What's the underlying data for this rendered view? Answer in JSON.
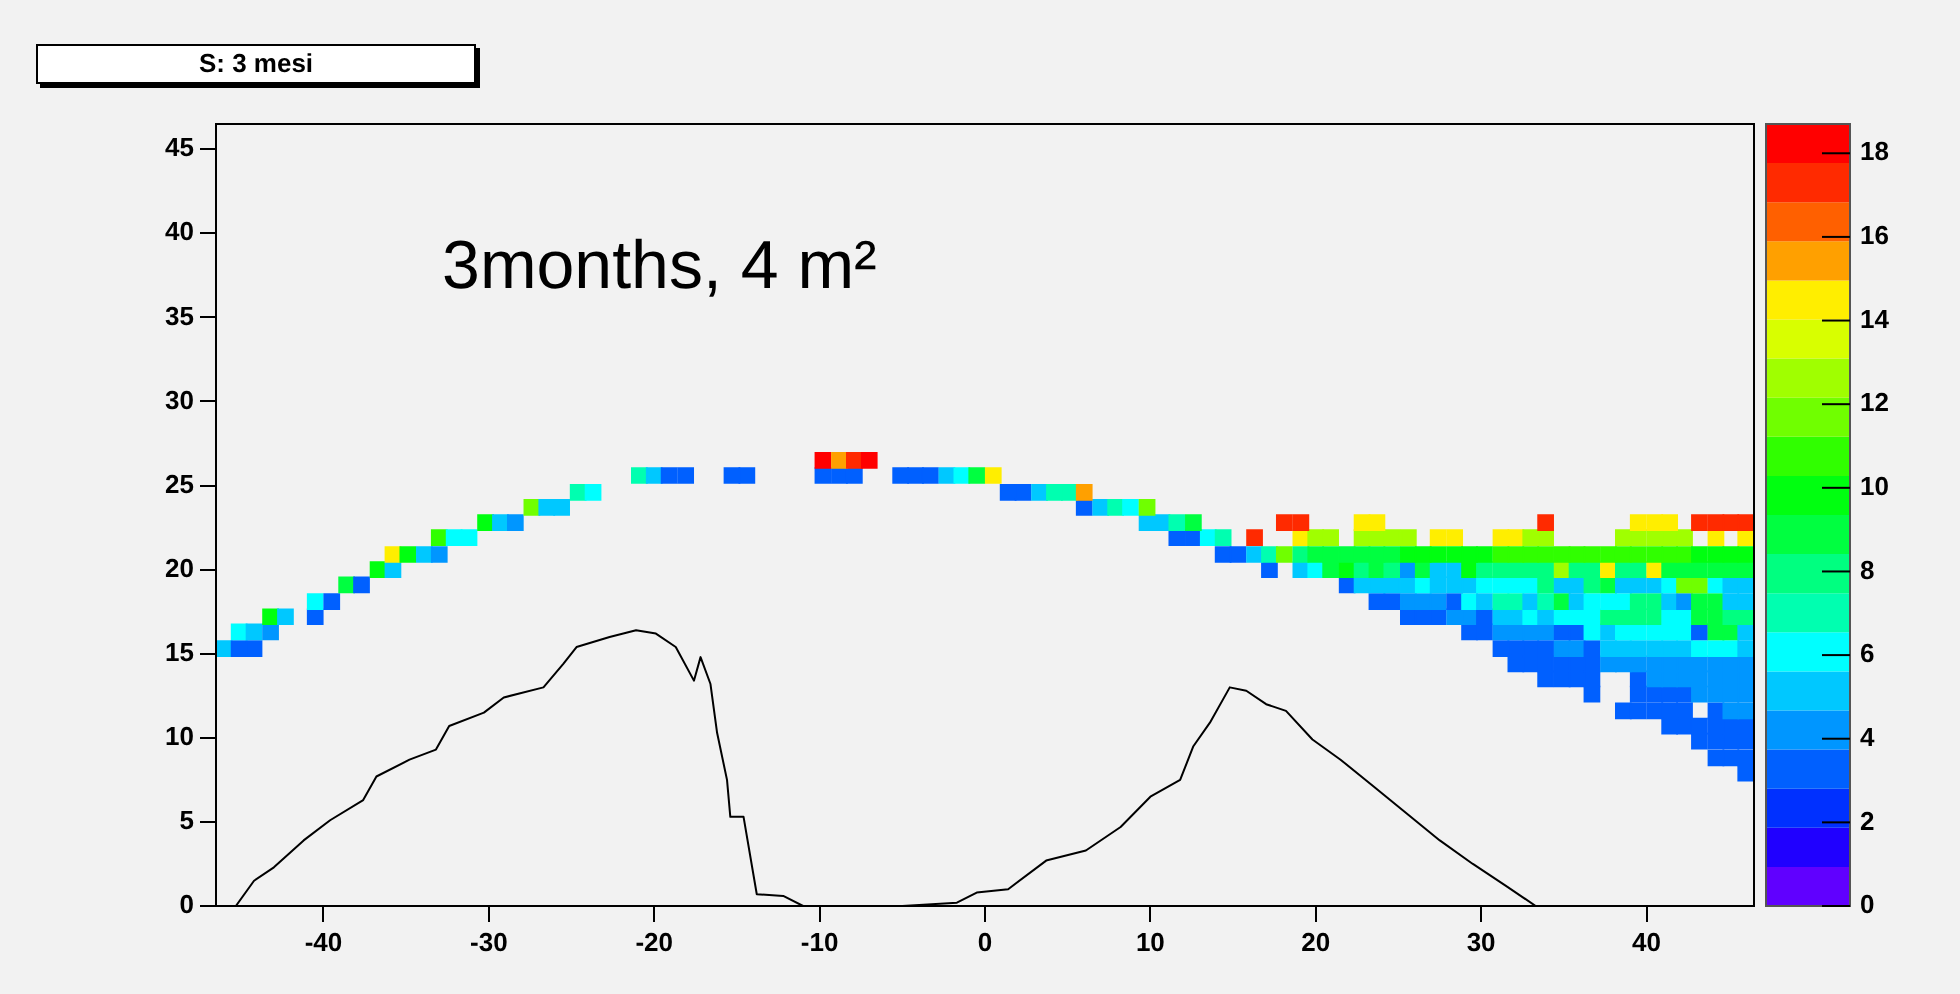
{
  "chart_data": {
    "type": "scatter",
    "title": "S: 3 mesi",
    "annotations": [
      "3months, 4 m²"
    ],
    "xlim": [
      -46.5,
      46.5
    ],
    "ylim": [
      0,
      46.5
    ],
    "xticks": [
      -40,
      -30,
      -20,
      -10,
      0,
      10,
      20,
      30,
      40
    ],
    "yticks": [
      0,
      5,
      10,
      15,
      20,
      25,
      30,
      35,
      40,
      45
    ],
    "clim": [
      0,
      18.7
    ],
    "cticks": [
      0,
      2,
      4,
      6,
      8,
      10,
      12,
      14,
      16,
      18
    ],
    "marker": "square",
    "series": [
      {
        "x": [
          -9.8,
          -8.8,
          -7.9,
          -7.0
        ],
        "values": [
          26.5,
          26.5,
          26.5,
          26.5
        ],
        "cvalues": [
          18,
          15.5,
          17.5,
          18
        ],
        "colors": [
          "#ff0000",
          "#ffa000",
          "#ff2a00",
          "#ff0000"
        ]
      },
      {
        "x": [
          -20.9,
          -20.0,
          -19.1,
          -18.1,
          -15.3,
          -14.4,
          -9.8,
          -8.8,
          -7.9,
          -5.1,
          -4.2,
          -3.3,
          -2.3,
          -1.4,
          -0.5,
          0.5
        ],
        "values": [
          25.6,
          25.6,
          25.6,
          25.6,
          25.6,
          25.6,
          25.6,
          25.6,
          25.6,
          25.6,
          25.6,
          25.6,
          25.6,
          25.6,
          25.6,
          25.6
        ],
        "cvalues": [
          7,
          5,
          3,
          3,
          3,
          3,
          3,
          3,
          3,
          3,
          3,
          3,
          5,
          6.5,
          9,
          14.5
        ],
        "colors": [
          "#00ffb0",
          "#00c8ff",
          "#0060ff",
          "#0060ff",
          "#0060ff",
          "#0060ff",
          "#0060ff",
          "#0060ff",
          "#0060ff",
          "#0060ff",
          "#0060ff",
          "#0060ff",
          "#00c8ff",
          "#00ffff",
          "#00ff40",
          "#ffee00"
        ]
      },
      {
        "x": [
          -24.6,
          -23.7,
          1.4,
          2.3,
          3.3,
          4.2,
          5.1,
          6.0
        ],
        "values": [
          24.6,
          24.6,
          24.6,
          24.6,
          24.6,
          24.6,
          24.6,
          24.6
        ],
        "cvalues": [
          7,
          6,
          3,
          3,
          5,
          7,
          7,
          15.5
        ],
        "colors": [
          "#00ffb0",
          "#00ffff",
          "#0060ff",
          "#0060ff",
          "#00c8ff",
          "#00ffb0",
          "#00ffb0",
          "#ffa000"
        ]
      },
      {
        "x": [
          -27.4,
          -26.5,
          -25.6,
          6.0,
          7.0,
          7.9,
          8.8,
          9.8
        ],
        "values": [
          23.7,
          23.7,
          23.7,
          23.7,
          23.7,
          23.7,
          23.7,
          23.7
        ],
        "cvalues": [
          12,
          5,
          5,
          3,
          5,
          7,
          6,
          12
        ],
        "colors": [
          "#70ff00",
          "#00c8ff",
          "#00c8ff",
          "#0060ff",
          "#00c8ff",
          "#00ffb0",
          "#00ffff",
          "#70ff00"
        ]
      },
      {
        "x": [
          -30.2,
          -29.3,
          -28.4,
          9.8,
          10.7,
          11.6,
          12.6,
          18.1,
          19.1,
          22.8,
          23.7,
          33.9,
          39.5,
          40.5,
          41.4,
          43.2,
          44.2,
          45.1,
          46.0
        ],
        "values": [
          22.8,
          22.8,
          22.8,
          22.8,
          22.8,
          22.8,
          22.8,
          22.8,
          22.8,
          22.8,
          22.8,
          22.8,
          22.8,
          22.8,
          22.8,
          22.8,
          22.8,
          22.8,
          22.8
        ],
        "cvalues": [
          10,
          5,
          4,
          5,
          5.5,
          7,
          9,
          17.5,
          17.5,
          14.5,
          14.5,
          17.5,
          14.5,
          14.5,
          14.5,
          17.5,
          17.5,
          17.5,
          17.5
        ],
        "colors": [
          "#00ff10",
          "#00c8ff",
          "#0096ff",
          "#00c8ff",
          "#00c8ff",
          "#00ffb0",
          "#00ff40",
          "#ff2a00",
          "#ff2a00",
          "#ffee00",
          "#ffee00",
          "#ff2a00",
          "#ffee00",
          "#ffee00",
          "#ffee00",
          "#ff2a00",
          "#ff2a00",
          "#ff2a00",
          "#ff2a00"
        ]
      },
      {
        "x": [
          -33.0,
          -32.1,
          -31.2,
          11.6,
          12.6,
          13.5,
          14.4,
          16.3,
          19.1,
          20.0,
          20.9,
          22.8,
          23.7,
          24.6,
          25.6,
          27.4,
          28.4,
          31.2,
          32.1,
          33.0,
          33.9,
          38.6,
          39.5,
          40.5,
          41.4,
          42.3,
          44.2,
          46.0
        ],
        "values": [
          21.9,
          21.9,
          21.9,
          21.9,
          21.9,
          21.9,
          21.9,
          21.9,
          21.9,
          21.9,
          21.9,
          21.9,
          21.9,
          21.9,
          21.9,
          21.9,
          21.9,
          21.9,
          21.9,
          21.9,
          21.9,
          21.9,
          21.9,
          21.9,
          21.9,
          21.9,
          21.9,
          21.9
        ],
        "cvalues": [
          11,
          6.5,
          6.5,
          3,
          3,
          6,
          7,
          17,
          14.5,
          12.5,
          12.5,
          12.5,
          12.5,
          12.5,
          12.5,
          14.5,
          14.5,
          14.5,
          14.5,
          12.5,
          12.5,
          12.5,
          12.5,
          12.5,
          12.5,
          12.5,
          14.5,
          14.5
        ],
        "colors": [
          "#30ff00",
          "#00ffff",
          "#00ffff",
          "#0060ff",
          "#0060ff",
          "#00ffff",
          "#00ffb0",
          "#ff2a00",
          "#ffee00",
          "#a0ff00",
          "#a0ff00",
          "#a0ff00",
          "#a0ff00",
          "#a0ff00",
          "#a0ff00",
          "#ffee00",
          "#ffee00",
          "#ffee00",
          "#ffee00",
          "#a0ff00",
          "#a0ff00",
          "#a0ff00",
          "#a0ff00",
          "#a0ff00",
          "#a0ff00",
          "#a0ff00",
          "#ffee00",
          "#ffee00"
        ]
      },
      {
        "x": [
          -35.8,
          -34.9,
          -33.9,
          -33.0,
          14.4,
          15.3,
          16.3,
          17.2,
          18.1,
          19.1,
          20.0,
          20.9,
          21.9,
          22.8,
          23.7,
          24.6,
          25.6,
          26.5,
          27.4,
          28.4,
          29.3,
          30.2,
          31.2,
          32.1,
          33.0,
          33.9,
          34.9,
          35.8,
          36.7,
          37.7,
          38.6,
          39.5,
          40.5,
          41.4,
          42.3,
          43.2,
          44.2,
          45.1,
          46.0
        ],
        "values": [
          20.9,
          20.9,
          20.9,
          20.9,
          20.9,
          20.9,
          20.9,
          20.9,
          20.9,
          20.9,
          20.9,
          20.9,
          20.9,
          20.9,
          20.9,
          20.9,
          20.9,
          20.9,
          20.9,
          20.9,
          20.9,
          20.9,
          20.9,
          20.9,
          20.9,
          20.9,
          20.9,
          20.9,
          20.9,
          20.9,
          20.9,
          20.9,
          20.9,
          20.9,
          20.9,
          20.9,
          20.9,
          20.9,
          20.9
        ],
        "cvalues": [
          14.5,
          10,
          5.5,
          4,
          3,
          3,
          5,
          7,
          12,
          7.5,
          9,
          9,
          9,
          9,
          9,
          9,
          9.5,
          9.5,
          9.5,
          9.5,
          9.5,
          9.5,
          10.5,
          10.5,
          10.5,
          10.5,
          10.5,
          10.5,
          10.5,
          10.5,
          10.5,
          10.5,
          10.5,
          10.5,
          10.5,
          10,
          10,
          10,
          10
        ],
        "colors": [
          "#ffee00",
          "#00ff10",
          "#00c8ff",
          "#0096ff",
          "#0060ff",
          "#0060ff",
          "#00c8ff",
          "#00ffb0",
          "#70ff00",
          "#00ff80",
          "#00ff40",
          "#00ff40",
          "#00ff40",
          "#00ff40",
          "#00ff40",
          "#00ff40",
          "#00ff10",
          "#00ff10",
          "#00ff10",
          "#00ff10",
          "#00ff10",
          "#00ff10",
          "#30ff00",
          "#30ff00",
          "#30ff00",
          "#30ff00",
          "#30ff00",
          "#30ff00",
          "#30ff00",
          "#30ff00",
          "#30ff00",
          "#30ff00",
          "#30ff00",
          "#30ff00",
          "#30ff00",
          "#00ff10",
          "#00ff10",
          "#00ff10",
          "#00ff10"
        ]
      },
      {
        "x": [
          -36.7,
          -35.8,
          17.2,
          19.1,
          20.0,
          20.9,
          21.9,
          22.8,
          23.7,
          24.6,
          25.6,
          26.5,
          27.4,
          28.4,
          29.3,
          30.2,
          31.2,
          32.1,
          33.0,
          33.9,
          34.9,
          35.8,
          36.7,
          37.7,
          38.6,
          39.5,
          40.5,
          41.4,
          42.3,
          43.2,
          44.2,
          45.1,
          46.0
        ],
        "values": [
          20.0,
          20.0,
          20.0,
          20.0,
          20.0,
          20.0,
          20.0,
          20.0,
          20.0,
          20.0,
          20.0,
          20.0,
          20.0,
          20.0,
          20.0,
          20.0,
          20.0,
          20.0,
          20.0,
          20.0,
          20.0,
          20.0,
          20.0,
          20.0,
          20.0,
          20.0,
          20.0,
          20.0,
          20.0,
          20.0,
          20.0,
          20.0,
          20.0
        ],
        "cvalues": [
          10,
          5,
          3,
          5,
          6.5,
          9,
          10,
          8,
          8.5,
          7.5,
          4.5,
          9,
          5.5,
          5.5,
          9.5,
          7.5,
          7.5,
          7.5,
          7.5,
          7.5,
          12.5,
          7.5,
          7.5,
          14.5,
          7.5,
          7.5,
          14.5,
          8.5,
          8.5,
          8.5,
          8.5,
          8.5,
          8.5
        ],
        "colors": [
          "#00ff10",
          "#00c8ff",
          "#0060ff",
          "#00c8ff",
          "#00ffff",
          "#00ff40",
          "#00ff10",
          "#00ff80",
          "#00ff40",
          "#00ff80",
          "#0096ff",
          "#00ff40",
          "#00c8ff",
          "#00c8ff",
          "#00ff10",
          "#00ff80",
          "#00ff80",
          "#00ff80",
          "#00ff80",
          "#00ff80",
          "#a0ff00",
          "#00ff80",
          "#00ff80",
          "#ffee00",
          "#00ff80",
          "#00ff80",
          "#ffee00",
          "#00ff40",
          "#00ff40",
          "#00ff40",
          "#00ff40",
          "#00ff40",
          "#00ff40"
        ]
      },
      {
        "x": [
          -38.6,
          -37.7,
          21.9,
          22.8,
          23.7,
          24.6,
          25.6,
          26.5,
          27.4,
          28.4,
          29.3,
          30.2,
          31.2,
          32.1,
          33.0,
          33.9,
          34.9,
          35.8,
          36.7,
          37.7,
          38.6,
          39.5,
          40.5,
          41.4,
          42.3,
          43.2,
          44.2,
          45.1,
          46.0
        ],
        "values": [
          19.1,
          19.1,
          19.1,
          19.1,
          19.1,
          19.1,
          19.1,
          19.1,
          19.1,
          19.1,
          19.1,
          19.1,
          19.1,
          19.1,
          19.1,
          19.1,
          19.1,
          19.1,
          19.1,
          19.1,
          19.1,
          19.1,
          19.1,
          19.1,
          19.1,
          19.1,
          19.1,
          19.1,
          19.1
        ],
        "cvalues": [
          9,
          3,
          3,
          5,
          5,
          5,
          5,
          6,
          5,
          5,
          5,
          6.5,
          6.5,
          6.5,
          6.5,
          7.5,
          5.5,
          5.5,
          7.5,
          9,
          5.5,
          5.5,
          5.5,
          6.5,
          11.5,
          11.5,
          6.5,
          5,
          5
        ],
        "colors": [
          "#00ff40",
          "#0060ff",
          "#0060ff",
          "#00c8ff",
          "#00c8ff",
          "#00c8ff",
          "#00c8ff",
          "#00ffff",
          "#00c8ff",
          "#00c8ff",
          "#00c8ff",
          "#00ffff",
          "#00ffff",
          "#00ffff",
          "#00ffff",
          "#00ff80",
          "#00c8ff",
          "#00c8ff",
          "#00ff80",
          "#00ff40",
          "#00c8ff",
          "#00c8ff",
          "#00c8ff",
          "#00ffff",
          "#70ff00",
          "#70ff00",
          "#00ffff",
          "#00c8ff",
          "#00c8ff"
        ]
      },
      {
        "x": [
          -40.5,
          -39.5,
          23.7,
          24.6,
          25.6,
          26.5,
          27.4,
          28.4,
          29.3,
          30.2,
          31.2,
          32.1,
          33.0,
          33.9,
          34.9,
          35.8,
          36.7,
          37.7,
          38.6,
          39.5,
          40.5,
          41.4,
          42.3,
          43.2,
          44.2,
          45.1,
          46.0
        ],
        "values": [
          18.1,
          18.1,
          18.1,
          18.1,
          18.1,
          18.1,
          18.1,
          18.1,
          18.1,
          18.1,
          18.1,
          18.1,
          18.1,
          18.1,
          18.1,
          18.1,
          18.1,
          18.1,
          18.1,
          18.1,
          18.1,
          18.1,
          18.1,
          18.1,
          18.1,
          18.1,
          18.1
        ],
        "cvalues": [
          6,
          3,
          3,
          3,
          4.5,
          4.5,
          4.5,
          3,
          6,
          5,
          7,
          7,
          5,
          7,
          8.5,
          5,
          6.5,
          6.5,
          6.5,
          7.5,
          7.5,
          5,
          4,
          9,
          9,
          5,
          5
        ],
        "colors": [
          "#00ffff",
          "#0060ff",
          "#0060ff",
          "#0060ff",
          "#0096ff",
          "#0096ff",
          "#0096ff",
          "#0060ff",
          "#00ffff",
          "#00c8ff",
          "#00ffb0",
          "#00ffb0",
          "#00c8ff",
          "#00ffb0",
          "#00ff40",
          "#00c8ff",
          "#00ffff",
          "#00ffff",
          "#00ffff",
          "#00ff80",
          "#00ff80",
          "#00c8ff",
          "#0096ff",
          "#00ff40",
          "#00ff40",
          "#00c8ff",
          "#00c8ff"
        ]
      },
      {
        "x": [
          -43.2,
          -42.3,
          -40.5,
          25.6,
          26.5,
          27.4,
          28.4,
          29.3,
          30.2,
          31.2,
          32.1,
          33.0,
          33.9,
          34.9,
          35.8,
          36.7,
          37.7,
          38.6,
          39.5,
          40.5,
          41.4,
          42.3,
          43.2,
          44.2,
          45.1,
          46.0
        ],
        "values": [
          17.2,
          17.2,
          17.2,
          17.2,
          17.2,
          17.2,
          17.2,
          17.2,
          17.2,
          17.2,
          17.2,
          17.2,
          17.2,
          17.2,
          17.2,
          17.2,
          17.2,
          17.2,
          17.2,
          17.2,
          17.2,
          17.2,
          17.2,
          17.2,
          17.2,
          17.2
        ],
        "cvalues": [
          10,
          5,
          3,
          3,
          3,
          3,
          4.5,
          4.5,
          3.5,
          5,
          5,
          6,
          5,
          6.5,
          6.5,
          6.5,
          7.5,
          7.5,
          7.5,
          7.5,
          6.5,
          6.5,
          9,
          9,
          7.5,
          7.5
        ],
        "colors": [
          "#00ff10",
          "#00c8ff",
          "#0060ff",
          "#0060ff",
          "#0060ff",
          "#0060ff",
          "#0096ff",
          "#0096ff",
          "#0060ff",
          "#00c8ff",
          "#00c8ff",
          "#00ffff",
          "#00c8ff",
          "#00ffff",
          "#00ffff",
          "#00ffff",
          "#00ff80",
          "#00ff80",
          "#00ff80",
          "#00ff80",
          "#00ffff",
          "#00ffff",
          "#00ff40",
          "#00ff40",
          "#00ff80",
          "#00ff80"
        ]
      },
      {
        "x": [
          -45.1,
          -44.2,
          -43.2,
          29.3,
          30.2,
          31.2,
          32.1,
          33.0,
          33.9,
          34.9,
          35.8,
          36.7,
          37.7,
          38.6,
          39.5,
          40.5,
          41.4,
          42.3,
          43.2,
          44.2,
          45.1,
          46.0
        ],
        "values": [
          16.3,
          16.3,
          16.3,
          16.3,
          16.3,
          16.3,
          16.3,
          16.3,
          16.3,
          16.3,
          16.3,
          16.3,
          16.3,
          16.3,
          16.3,
          16.3,
          16.3,
          16.3,
          16.3,
          16.3,
          16.3,
          16.3
        ],
        "cvalues": [
          6,
          5,
          4.5,
          3,
          3,
          4.5,
          4.5,
          4.5,
          4.5,
          3.5,
          3.5,
          6,
          5,
          6.5,
          6.5,
          6.5,
          6.5,
          6.5,
          3.5,
          9,
          9,
          5
        ],
        "colors": [
          "#00ffff",
          "#00c8ff",
          "#0096ff",
          "#0060ff",
          "#0060ff",
          "#0096ff",
          "#0096ff",
          "#0096ff",
          "#0096ff",
          "#0060ff",
          "#0060ff",
          "#00ffff",
          "#00c8ff",
          "#00ffff",
          "#00ffff",
          "#00ffff",
          "#00ffff",
          "#00ffff",
          "#0060ff",
          "#00ff40",
          "#00ff40",
          "#00c8ff"
        ]
      },
      {
        "x": [
          -46.0,
          -45.1,
          -44.2,
          31.2,
          32.1,
          33.0,
          33.9,
          34.9,
          35.8,
          36.7,
          37.7,
          38.6,
          39.5,
          40.5,
          41.4,
          42.3,
          43.2,
          44.2,
          45.1,
          46.0
        ],
        "values": [
          15.3,
          15.3,
          15.3,
          15.3,
          15.3,
          15.3,
          15.3,
          15.3,
          15.3,
          15.3,
          15.3,
          15.3,
          15.3,
          15.3,
          15.3,
          15.3,
          15.3,
          15.3,
          15.3,
          15.3
        ],
        "cvalues": [
          5,
          3,
          3,
          3,
          3,
          3,
          3,
          4.5,
          4.5,
          3.5,
          5,
          5,
          5,
          5,
          5,
          5,
          6.5,
          6.5,
          6,
          5
        ],
        "colors": [
          "#00c8ff",
          "#0060ff",
          "#0060ff",
          "#0060ff",
          "#0060ff",
          "#0060ff",
          "#0060ff",
          "#0096ff",
          "#0096ff",
          "#0060ff",
          "#00c8ff",
          "#00c8ff",
          "#00c8ff",
          "#00c8ff",
          "#00c8ff",
          "#00c8ff",
          "#00ffff",
          "#00ffff",
          "#00ffff",
          "#00c8ff"
        ]
      },
      {
        "x": [
          32.1,
          33.0,
          33.9,
          34.9,
          35.8,
          36.7,
          37.7,
          38.6,
          39.5,
          40.5,
          41.4,
          42.3,
          43.2,
          44.2,
          45.1,
          46.0
        ],
        "values": [
          14.4,
          14.4,
          14.4,
          14.4,
          14.4,
          14.4,
          14.4,
          14.4,
          14.4,
          14.4,
          14.4,
          14.4,
          14.4,
          14.4,
          14.4,
          14.4
        ],
        "cvalues": [
          3,
          3,
          3,
          3,
          3,
          3,
          4.5,
          4.5,
          4.5,
          4.5,
          4.5,
          4.5,
          4.5,
          4.5,
          4.5,
          4.5
        ],
        "colors": [
          "#0060ff",
          "#0060ff",
          "#0060ff",
          "#0060ff",
          "#0060ff",
          "#0060ff",
          "#0096ff",
          "#0096ff",
          "#0096ff",
          "#0096ff",
          "#0096ff",
          "#0096ff",
          "#0096ff",
          "#0096ff",
          "#0096ff",
          "#0096ff"
        ]
      },
      {
        "x": [
          33.9,
          34.9,
          35.8,
          36.7,
          39.5,
          40.5,
          41.4,
          42.3,
          43.2,
          44.2,
          45.1,
          46.0
        ],
        "values": [
          13.5,
          13.5,
          13.5,
          13.5,
          13.5,
          13.5,
          13.5,
          13.5,
          13.5,
          13.5,
          13.5,
          13.5
        ],
        "cvalues": [
          3,
          3,
          3,
          3,
          3.5,
          4.5,
          4.5,
          4.5,
          4.5,
          4.5,
          4.5,
          4.5
        ],
        "colors": [
          "#0060ff",
          "#0060ff",
          "#0060ff",
          "#0060ff",
          "#0060ff",
          "#0096ff",
          "#0096ff",
          "#0096ff",
          "#0096ff",
          "#0096ff",
          "#0096ff",
          "#0096ff"
        ]
      },
      {
        "x": [
          36.7,
          39.5,
          40.5,
          41.4,
          42.3,
          43.2,
          44.2,
          45.1,
          46.0
        ],
        "values": [
          12.6,
          12.6,
          12.6,
          12.6,
          12.6,
          12.6,
          12.6,
          12.6,
          12.6
        ],
        "cvalues": [
          3,
          3.5,
          3.5,
          3.5,
          3.5,
          4.5,
          4.5,
          4.5,
          4.5
        ],
        "colors": [
          "#0060ff",
          "#0060ff",
          "#0060ff",
          "#0060ff",
          "#0060ff",
          "#0096ff",
          "#0096ff",
          "#0096ff",
          "#0096ff"
        ]
      },
      {
        "x": [
          38.6,
          39.5,
          40.5,
          41.4,
          42.3,
          44.2,
          45.1,
          46.0
        ],
        "values": [
          11.6,
          11.6,
          11.6,
          11.6,
          11.6,
          11.6,
          11.6,
          11.6
        ],
        "cvalues": [
          3,
          3,
          3,
          3,
          3,
          3,
          4.5,
          4.5
        ],
        "colors": [
          "#0060ff",
          "#0060ff",
          "#0060ff",
          "#0060ff",
          "#0060ff",
          "#0060ff",
          "#0096ff",
          "#0096ff"
        ]
      },
      {
        "x": [
          41.4,
          42.3,
          43.2,
          44.2,
          45.1,
          46.0
        ],
        "values": [
          10.7,
          10.7,
          10.7,
          10.7,
          10.7,
          10.7
        ],
        "cvalues": [
          3,
          3,
          3,
          3,
          3,
          3
        ],
        "colors": [
          "#0060ff",
          "#0060ff",
          "#0060ff",
          "#0060ff",
          "#0060ff",
          "#0060ff"
        ]
      },
      {
        "x": [
          43.2,
          44.2,
          45.1,
          46.0
        ],
        "values": [
          9.8,
          9.8,
          9.8,
          9.8
        ],
        "cvalues": [
          3,
          3,
          3,
          3
        ],
        "colors": [
          "#0060ff",
          "#0060ff",
          "#0060ff",
          "#0060ff"
        ]
      },
      {
        "x": [
          44.2,
          45.1,
          46.0
        ],
        "values": [
          8.8,
          8.8,
          8.8
        ],
        "cvalues": [
          3,
          3,
          3
        ],
        "colors": [
          "#0060ff",
          "#0060ff",
          "#0060ff"
        ]
      },
      {
        "x": [
          46.0
        ],
        "values": [
          7.9
        ],
        "cvalues": [
          3
        ],
        "colors": [
          "#0060ff"
        ]
      },
      {
        "type": "line",
        "color": "#000000",
        "marker": "none",
        "x": [
          -45.3,
          -44.2,
          -43.0,
          -41.2,
          -39.6,
          -37.6,
          -36.8,
          -34.8,
          -33.2,
          -32.4,
          -30.3,
          -29.1,
          -26.7,
          -25.5,
          -24.7,
          -22.7,
          -21.1,
          -19.9,
          -18.7,
          -17.6,
          -17.2,
          -16.6,
          -16.2,
          -15.6,
          -15.4,
          -14.6,
          -13.8,
          -12.2,
          -11.0,
          -5.0,
          -1.7,
          -0.5,
          1.4,
          3.7,
          6.1,
          8.2,
          10.0,
          11.8,
          12.6,
          13.6,
          14.8,
          15.8,
          17.0,
          18.2,
          19.8,
          21.5,
          23.5,
          25.5,
          27.5,
          29.5,
          31.5,
          33.3
        ],
        "values": [
          0,
          1.5,
          2.3,
          3.9,
          5.1,
          6.3,
          7.7,
          8.7,
          9.3,
          10.7,
          11.5,
          12.4,
          13.0,
          14.4,
          15.4,
          16.0,
          16.4,
          16.2,
          15.4,
          13.4,
          14.8,
          13.2,
          10.3,
          7.5,
          5.3,
          5.3,
          0.7,
          0.6,
          0,
          0,
          0.2,
          0.8,
          1.0,
          2.7,
          3.3,
          4.7,
          6.5,
          7.5,
          9.5,
          10.9,
          13.0,
          12.8,
          12.0,
          11.6,
          9.9,
          8.7,
          7.1,
          5.5,
          3.9,
          2.5,
          1.2,
          0
        ]
      }
    ]
  }
}
